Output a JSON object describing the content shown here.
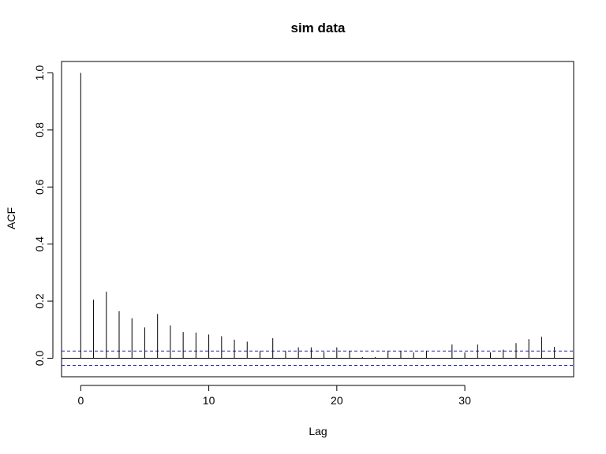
{
  "chart_data": {
    "type": "bar",
    "title": "sim data",
    "xlabel": "Lag",
    "ylabel": "ACF",
    "xlim": [
      -1.5,
      38.5
    ],
    "ylim": [
      -0.065,
      1.04
    ],
    "x_ticks": [
      0,
      10,
      20,
      30
    ],
    "y_ticks": [
      0.0,
      0.2,
      0.4,
      0.6,
      0.8,
      1.0
    ],
    "x_tick_labels": [
      "0",
      "10",
      "20",
      "30"
    ],
    "y_tick_labels": [
      "0.0",
      "0.2",
      "0.4",
      "0.6",
      "0.8",
      "1.0"
    ],
    "confidence_bound": 0.025,
    "series": [
      {
        "x": [
          0,
          1,
          2,
          3,
          4,
          5,
          6,
          7,
          8,
          9,
          10,
          11,
          12,
          13,
          14,
          15,
          16,
          17,
          18,
          19,
          20,
          21,
          22,
          23,
          24,
          25,
          26,
          27,
          28,
          29,
          30,
          31,
          32,
          33,
          34,
          35,
          36,
          37
        ],
        "values": [
          1.0,
          0.205,
          0.233,
          0.165,
          0.14,
          0.108,
          0.155,
          0.115,
          0.092,
          0.09,
          0.083,
          0.077,
          0.065,
          0.058,
          0.025,
          0.07,
          0.025,
          0.038,
          0.038,
          0.022,
          0.038,
          0.025,
          0.004,
          0.004,
          0.025,
          0.025,
          0.02,
          0.025,
          0.0,
          0.048,
          0.02,
          0.048,
          0.02,
          0.03,
          0.053,
          0.067,
          0.075,
          0.04
        ]
      }
    ]
  }
}
